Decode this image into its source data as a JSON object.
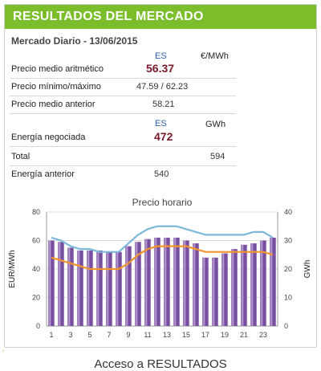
{
  "header": {
    "title": "RESULTADOS DEL MERCADO",
    "subtitle": "Mercado Diario - 13/06/2015"
  },
  "table": {
    "col_es": "ES",
    "col_price_unit": "€/MWh",
    "col_energy_unit": "GWh",
    "rows": [
      {
        "label": "Precio medio aritmético",
        "value": "56.37"
      },
      {
        "label": "Precio mínimo/máximo",
        "value": "47.59 / 62.23"
      },
      {
        "label": "Precio medio anterior",
        "value": "58.21"
      },
      {
        "label": "Energía negociada",
        "value": "472"
      },
      {
        "label": "Total",
        "value": "594"
      },
      {
        "label": "Energía anterior",
        "value": "540"
      }
    ]
  },
  "chart_data": {
    "type": "bar",
    "title": "Precio horario",
    "ylabel": "EUR/MWh",
    "y2label": "GWh",
    "ylim": [
      0,
      80
    ],
    "y2lim": [
      0,
      40
    ],
    "yticks": [
      0,
      20,
      40,
      60,
      80
    ],
    "y2ticks": [
      0,
      10,
      20,
      30,
      40
    ],
    "categories": [
      1,
      2,
      3,
      4,
      5,
      6,
      7,
      8,
      9,
      10,
      11,
      12,
      13,
      14,
      15,
      16,
      17,
      18,
      19,
      20,
      21,
      22,
      23,
      24
    ],
    "xtick_labels": [
      "1",
      "3",
      "5",
      "7",
      "9",
      "11",
      "13",
      "15",
      "17",
      "19",
      "21",
      "23"
    ],
    "series": [
      {
        "kind": "bar",
        "axis": "left",
        "color": "#7b4fa0",
        "values": [
          60,
          59,
          55,
          53,
          53,
          53,
          52,
          52,
          56,
          59,
          61,
          62,
          62,
          62,
          60,
          58,
          48,
          48,
          51,
          54,
          57,
          58,
          60,
          62
        ]
      },
      {
        "kind": "line",
        "axis": "right",
        "color": "#7ab8dc",
        "values": [
          31,
          30,
          28,
          27,
          27,
          26,
          26,
          26,
          29,
          32,
          34,
          35,
          35,
          35,
          34,
          33,
          32,
          32,
          32,
          32,
          32,
          33,
          33,
          31
        ]
      },
      {
        "kind": "line",
        "axis": "right",
        "color": "#f0962a",
        "values": [
          24,
          23,
          22,
          21,
          20,
          20,
          20,
          20,
          22,
          25,
          27,
          28,
          28,
          28,
          28,
          27,
          26,
          26,
          26,
          26,
          26,
          26,
          26,
          25
        ]
      }
    ],
    "grid": true,
    "legend": "none"
  },
  "footer": {
    "link": "Acceso a RESULTADOS"
  }
}
